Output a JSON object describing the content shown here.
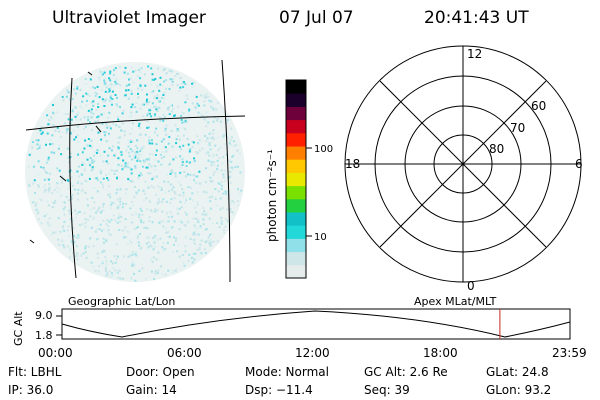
{
  "header": {
    "title": "Ultraviolet Imager",
    "date": "07 Jul 07",
    "time": "20:41:43 UT"
  },
  "colorbar": {
    "unit_label": "photon cm⁻²s⁻¹",
    "ticks": [
      "100",
      "10"
    ],
    "colors": [
      "#e6ecec",
      "#cfe6e8",
      "#8fe0e8",
      "#22d8d8",
      "#12c0c8",
      "#22d040",
      "#7ae000",
      "#e8e800",
      "#ffc800",
      "#ff8000",
      "#ff2000",
      "#c8001e",
      "#6e003c",
      "#1a002a",
      "#000000"
    ]
  },
  "polar_plot": {
    "mlt_labels": {
      "top": "12",
      "left": "18",
      "right": "6",
      "bottom": "0"
    },
    "lat_labels": [
      "60",
      "70",
      "80"
    ]
  },
  "timeline": {
    "left_label": "Geographic Lat/Lon",
    "right_label": "Apex MLat/MLT",
    "y_axis_label": "GC Alt",
    "y_ticks": [
      "9.0",
      "1.8"
    ],
    "x_ticks": [
      "00:00",
      "06:00",
      "12:00",
      "18:00",
      "23:59"
    ],
    "marker_time_hours": 20.69,
    "marker_color": "#c8281e"
  },
  "info": {
    "flt": "Flt: LBHL",
    "door": "Door: Open",
    "mode": "Mode: Normal",
    "gc_alt": "GC Alt: 2.6 Re",
    "glat": "GLat:  24.8",
    "ip": "IP: 36.0",
    "gain": "Gain: 14",
    "dsp": "Dsp:  −11.4",
    "seq": "Seq: 39",
    "glon": "GLon:  93.2"
  }
}
